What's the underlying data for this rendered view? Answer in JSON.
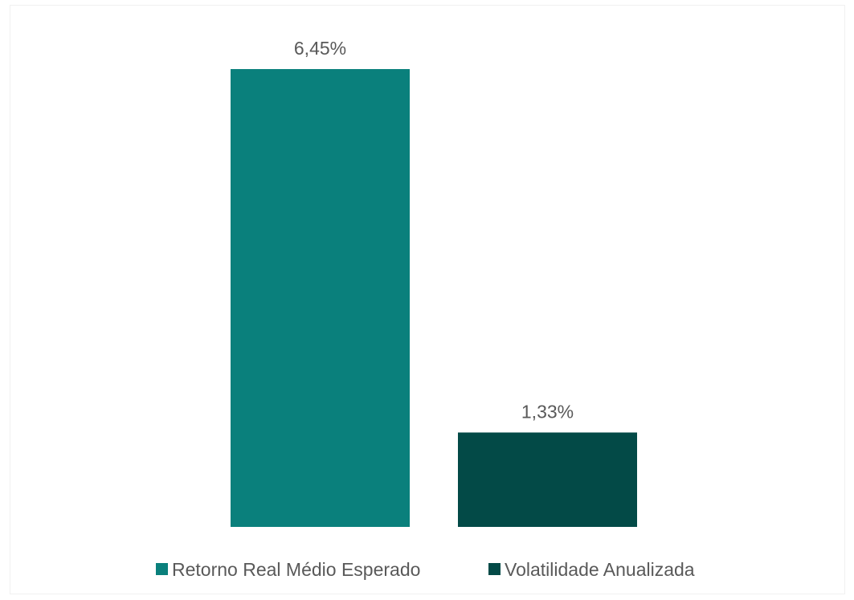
{
  "chart_data": {
    "type": "bar",
    "title": "",
    "xlabel": "",
    "ylabel": "",
    "ylim": [
      0,
      6.45
    ],
    "grid": false,
    "legend_position": "bottom",
    "series": [
      {
        "name": "Retorno Real Médio Esperado",
        "values": [
          6.45
        ],
        "label": "6,45%",
        "color": "#0a807c"
      },
      {
        "name": "Volatilidade Anualizada",
        "values": [
          1.33
        ],
        "label": "1,33%",
        "color": "#034a47"
      }
    ]
  }
}
